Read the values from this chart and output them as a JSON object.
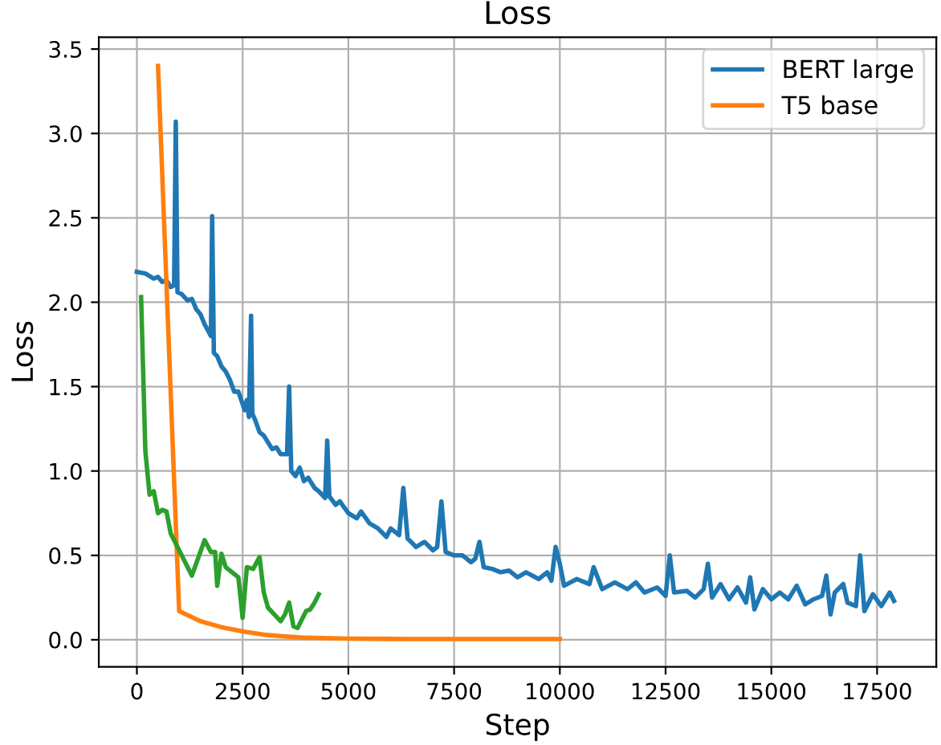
{
  "chart_data": {
    "type": "line",
    "title": "Loss",
    "xlabel": "Step",
    "ylabel": "Loss",
    "xlim": [
      -900,
      18900
    ],
    "ylim": [
      -0.16,
      3.57
    ],
    "xticks": [
      0,
      2500,
      5000,
      7500,
      10000,
      12500,
      15000,
      17500
    ],
    "yticks": [
      {
        "value": 0,
        "label": "0.0"
      },
      {
        "value": 0.5,
        "label": "0.5"
      },
      {
        "value": 1,
        "label": "1.0"
      },
      {
        "value": 1.5,
        "label": "1.5"
      },
      {
        "value": 2,
        "label": "2.0"
      },
      {
        "value": 2.5,
        "label": "2.5"
      },
      {
        "value": 3,
        "label": "3.0"
      },
      {
        "value": 3.5,
        "label": "3.5"
      }
    ],
    "grid": true,
    "legend": "top right",
    "series": [
      {
        "name": "BERT large",
        "color": "#1f77b4",
        "x": [
          0,
          200,
          400,
          500,
          600,
          700,
          800,
          880,
          920,
          960,
          1050,
          1200,
          1300,
          1400,
          1500,
          1600,
          1750,
          1780,
          1820,
          1900,
          2000,
          2100,
          2200,
          2300,
          2400,
          2550,
          2600,
          2650,
          2700,
          2730,
          2800,
          2900,
          3000,
          3100,
          3200,
          3300,
          3400,
          3550,
          3600,
          3650,
          3750,
          3850,
          3950,
          4050,
          4200,
          4300,
          4450,
          4500,
          4550,
          4700,
          4800,
          5000,
          5200,
          5300,
          5500,
          5700,
          5900,
          6000,
          6200,
          6300,
          6400,
          6600,
          6800,
          7000,
          7100,
          7200,
          7300,
          7500,
          7700,
          7900,
          8000,
          8100,
          8200,
          8400,
          8600,
          8800,
          9000,
          9200,
          9500,
          9700,
          9800,
          9900,
          10000,
          10100,
          10400,
          10700,
          10800,
          11000,
          11300,
          11600,
          11800,
          12000,
          12300,
          12500,
          12600,
          12700,
          13000,
          13200,
          13400,
          13500,
          13600,
          13800,
          14000,
          14200,
          14400,
          14500,
          14600,
          14800,
          15000,
          15200,
          15400,
          15600,
          15800,
          16000,
          16200,
          16300,
          16400,
          16500,
          16700,
          16800,
          17000,
          17100,
          17200,
          17400,
          17600,
          17800,
          17900
        ],
        "values": [
          2.18,
          2.17,
          2.14,
          2.15,
          2.12,
          2.13,
          2.09,
          2.1,
          3.07,
          2.06,
          2.05,
          2.01,
          2.02,
          1.96,
          1.93,
          1.87,
          1.8,
          2.51,
          1.7,
          1.68,
          1.62,
          1.59,
          1.54,
          1.47,
          1.47,
          1.36,
          1.42,
          1.32,
          1.92,
          1.34,
          1.3,
          1.23,
          1.21,
          1.17,
          1.13,
          1.14,
          1.1,
          1.1,
          1.5,
          1.0,
          0.97,
          1.02,
          0.94,
          0.96,
          0.9,
          0.88,
          0.84,
          1.18,
          0.85,
          0.8,
          0.82,
          0.75,
          0.72,
          0.76,
          0.69,
          0.66,
          0.61,
          0.66,
          0.62,
          0.9,
          0.6,
          0.55,
          0.58,
          0.53,
          0.55,
          0.82,
          0.52,
          0.5,
          0.5,
          0.46,
          0.48,
          0.58,
          0.43,
          0.42,
          0.4,
          0.41,
          0.37,
          0.4,
          0.36,
          0.4,
          0.35,
          0.55,
          0.45,
          0.32,
          0.36,
          0.33,
          0.43,
          0.3,
          0.34,
          0.3,
          0.34,
          0.28,
          0.31,
          0.26,
          0.5,
          0.28,
          0.29,
          0.25,
          0.3,
          0.45,
          0.25,
          0.33,
          0.24,
          0.31,
          0.22,
          0.37,
          0.18,
          0.3,
          0.24,
          0.28,
          0.24,
          0.32,
          0.21,
          0.24,
          0.26,
          0.38,
          0.15,
          0.28,
          0.33,
          0.22,
          0.2,
          0.5,
          0.17,
          0.27,
          0.2,
          0.28,
          0.23
        ]
      },
      {
        "name": "T5 base",
        "color": "#ff7f0e",
        "x": [
          500,
          1000,
          1500,
          2000,
          2500,
          3000,
          3500,
          4000,
          5000,
          6000,
          8000,
          10000
        ],
        "values": [
          3.4,
          0.17,
          0.11,
          0.075,
          0.05,
          0.03,
          0.02,
          0.012,
          0.007,
          0.005,
          0.004,
          0.004
        ]
      },
      {
        "color": "#2ca02c",
        "x": [
          100,
          200,
          300,
          400,
          500,
          600,
          700,
          800,
          1000,
          1300,
          1600,
          1750,
          1850,
          1900,
          2000,
          2100,
          2400,
          2500,
          2600,
          2750,
          2900,
          3000,
          3100,
          3400,
          3500,
          3600,
          3700,
          3800,
          4000,
          4100,
          4200,
          4300
        ],
        "values": [
          2.03,
          1.12,
          0.86,
          0.88,
          0.75,
          0.77,
          0.76,
          0.63,
          0.53,
          0.38,
          0.59,
          0.52,
          0.52,
          0.32,
          0.51,
          0.43,
          0.37,
          0.13,
          0.43,
          0.42,
          0.49,
          0.28,
          0.19,
          0.11,
          0.15,
          0.22,
          0.08,
          0.07,
          0.17,
          0.18,
          0.22,
          0.27
        ]
      }
    ]
  }
}
